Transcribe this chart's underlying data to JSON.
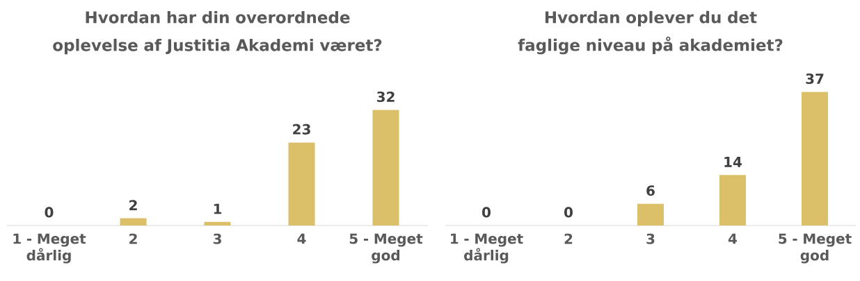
{
  "chart_data": [
    {
      "type": "bar",
      "title": "Hvordan har din overordnede oplevelse af Justitia Akademi været?",
      "categories": [
        "1 - Meget dårlig",
        "2",
        "3",
        "4",
        "5 - Meget god"
      ],
      "values": [
        0,
        2,
        1,
        23,
        32
      ],
      "color": "#dbc069",
      "data_labels": true
    },
    {
      "type": "bar",
      "title": "Hvordan oplever du det faglige niveau på akademiet?",
      "categories": [
        "1 - Meget dårlig",
        "2",
        "3",
        "4",
        "5 - Meget god"
      ],
      "values": [
        0,
        0,
        6,
        14,
        37
      ],
      "color": "#dbc069",
      "data_labels": true
    }
  ]
}
